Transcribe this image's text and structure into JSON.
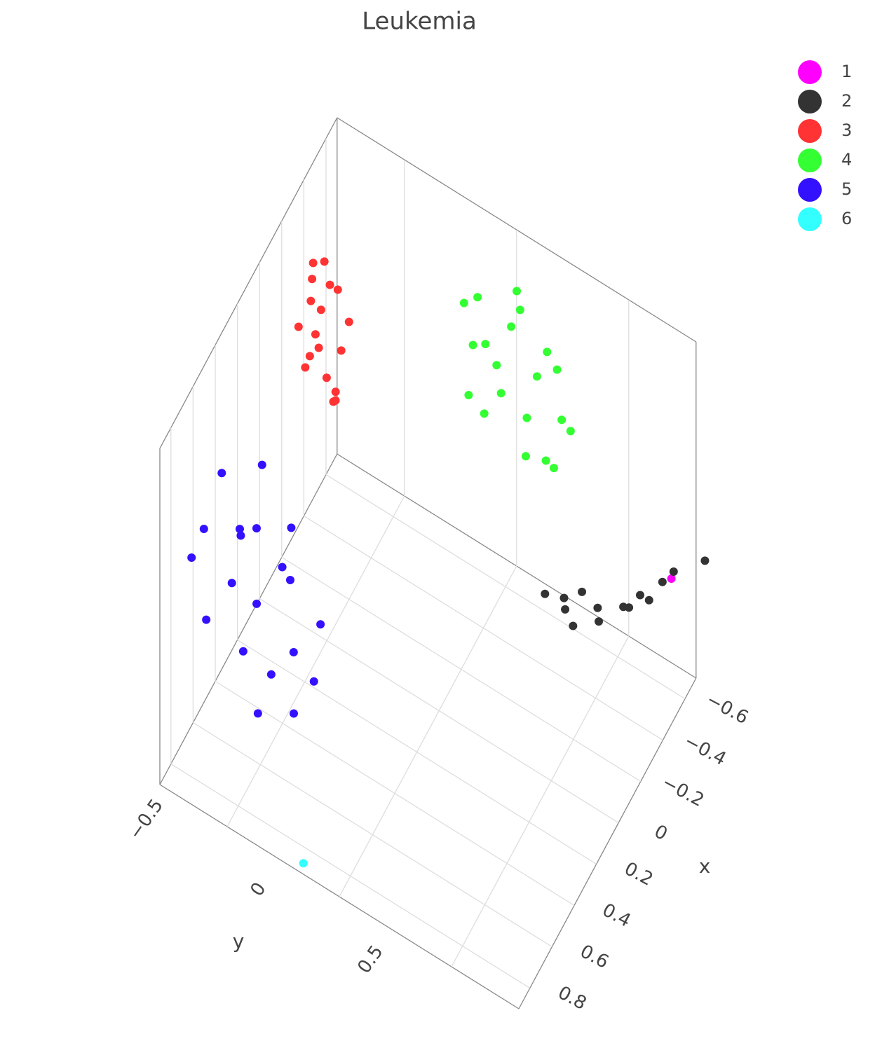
{
  "chart_data": {
    "type": "scatter3d",
    "title": "Leukemia",
    "x_label": "x",
    "y_label": "y",
    "xlim": [
      -0.7,
      0.9
    ],
    "ylim": [
      -0.8,
      0.8
    ],
    "zlim": [
      -1,
      1
    ],
    "xticks": [
      {
        "value": -0.6,
        "label": "−0.6"
      },
      {
        "value": -0.4,
        "label": "−0.4"
      },
      {
        "value": -0.2,
        "label": "−0.2"
      },
      0,
      0.2,
      0.4,
      0.6,
      0.8
    ],
    "yticks": [
      {
        "value": -0.5,
        "label": "−0.5"
      },
      0,
      0.5
    ],
    "grid": true,
    "legend": "top-right",
    "series": [
      {
        "name": "1",
        "color": "#ff00ff",
        "x": [
          -0.7
        ],
        "y": [
          0.69
        ],
        "z": [
          -0.5
        ]
      },
      {
        "name": "2",
        "color": "#333333",
        "x": [
          -0.45,
          -0.47,
          -0.46,
          -0.44,
          -0.48,
          -0.5,
          -0.49,
          -0.55,
          -0.56,
          -0.6,
          -0.62,
          -0.68,
          -0.7,
          -0.78
        ],
        "y": [
          0.25,
          0.33,
          0.33,
          0.38,
          0.4,
          0.46,
          0.47,
          0.55,
          0.57,
          0.6,
          0.63,
          0.66,
          0.7,
          0.8
        ],
        "z": [
          -0.65,
          -0.7,
          -0.62,
          -0.72,
          -0.55,
          -0.62,
          -0.68,
          -0.6,
          -0.6,
          -0.55,
          -0.58,
          -0.52,
          -0.45,
          -0.4
        ]
      },
      {
        "name": "3",
        "color": "#ff3333",
        "x": [
          -0.18,
          -0.2,
          -0.15,
          -0.22,
          -0.17,
          -0.19,
          -0.16,
          -0.21,
          -0.18,
          -0.14,
          -0.23,
          -0.17,
          -0.2,
          -0.16,
          -0.19,
          -0.15,
          -0.22,
          -0.18
        ],
        "y": [
          -0.65,
          -0.55,
          -0.6,
          -0.68,
          -0.52,
          -0.63,
          -0.58,
          -0.7,
          -0.56,
          -0.62,
          -0.6,
          -0.66,
          -0.5,
          -0.54,
          -0.72,
          -0.64,
          -0.57,
          -0.6
        ],
        "z": [
          0.9,
          0.8,
          0.7,
          0.6,
          0.5,
          0.4,
          0.3,
          0.2,
          0.15,
          0.55,
          0.75,
          0.35,
          0.65,
          0.25,
          0.45,
          0.85,
          0.1,
          0.95
        ]
      },
      {
        "name": "4",
        "color": "#33ff33",
        "x": [
          -0.55,
          -0.6,
          -0.57,
          -0.52,
          -0.58,
          -0.54,
          -0.61,
          -0.56,
          -0.59,
          -0.53,
          -0.57,
          -0.6,
          -0.55,
          -0.62,
          -0.51,
          -0.58,
          -0.56,
          -0.54,
          -0.59,
          -0.57
        ],
        "y": [
          -0.1,
          0.05,
          0.2,
          -0.05,
          0.15,
          0.28,
          -0.15,
          0.0,
          0.1,
          0.25,
          -0.08,
          0.18,
          0.05,
          0.22,
          -0.12,
          0.3,
          -0.02,
          0.12,
          -0.18,
          0.08
        ],
        "z": [
          0.7,
          0.8,
          0.6,
          0.5,
          0.4,
          0.3,
          0.3,
          0.2,
          0.1,
          0.0,
          0.0,
          -0.1,
          0.65,
          0.45,
          0.15,
          0.2,
          0.35,
          -0.05,
          0.55,
          0.75
        ]
      },
      {
        "name": "5",
        "color": "#3311ff",
        "x": [
          0.3,
          0.25,
          0.35,
          0.2,
          0.3,
          0.4,
          0.28,
          0.22,
          0.33,
          0.38,
          0.26,
          0.31,
          0.18,
          0.42,
          0.24,
          0.29,
          0.36,
          0.21,
          0.34,
          0.27
        ],
        "y": [
          -0.9,
          -0.8,
          -0.7,
          -0.6,
          -0.5,
          -0.45,
          -0.75,
          -0.55,
          -0.65,
          -0.85,
          -0.4,
          -0.95,
          -0.7,
          -0.6,
          -0.85,
          -0.52,
          -0.38,
          -0.78,
          -0.58,
          -0.68
        ],
        "z": [
          -0.3,
          -0.6,
          -0.8,
          -0.4,
          -0.7,
          -0.9,
          -0.2,
          -0.1,
          -0.5,
          -0.7,
          -0.5,
          -0.5,
          0.1,
          -1.0,
          0.0,
          -0.3,
          -0.7,
          -0.35,
          -0.85,
          -0.15
        ]
      },
      {
        "name": "6",
        "color": "#33ffff",
        "x": [
          0.86
        ],
        "y": [
          -0.18
        ],
        "z": [
          -1
        ]
      }
    ]
  }
}
